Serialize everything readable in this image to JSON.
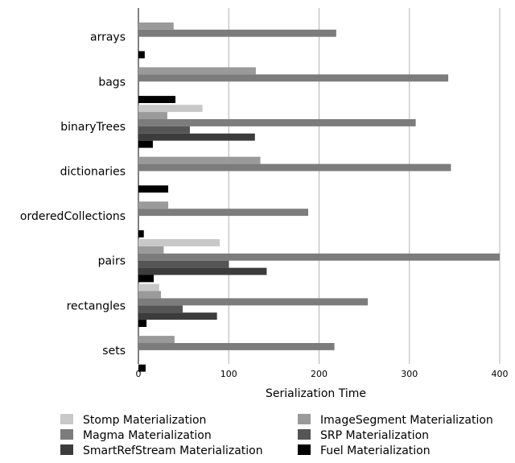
{
  "chart_data": {
    "type": "bar",
    "orientation": "horizontal",
    "xlabel": "Serialization Time",
    "xlim": [
      0,
      400
    ],
    "xticks": [
      0,
      100,
      200,
      300,
      400
    ],
    "grid": "vertical",
    "legend_position": "bottom",
    "categories": [
      "arrays",
      "bags",
      "binaryTrees",
      "dictionaries",
      "orderedCollections",
      "pairs",
      "rectangles",
      "sets"
    ],
    "series": [
      {
        "name": "Stomp Materialization",
        "color": "#c8c8c8",
        "values": [
          0,
          0,
          71,
          0,
          0,
          90,
          23,
          0
        ]
      },
      {
        "name": "ImageSegment Materialization",
        "color": "#9a9a9a",
        "values": [
          39,
          130,
          32,
          135,
          33,
          28,
          25,
          40
        ]
      },
      {
        "name": "Magma Materialization",
        "color": "#7c7c7c",
        "values": [
          219,
          343,
          307,
          346,
          188,
          400,
          254,
          217
        ]
      },
      {
        "name": "SRP Materialization",
        "color": "#555555",
        "values": [
          0,
          0,
          57,
          0,
          0,
          100,
          49,
          0
        ]
      },
      {
        "name": "SmartRefStream Materialization",
        "color": "#3c3c3c",
        "values": [
          0,
          0,
          129,
          0,
          0,
          142,
          87,
          0
        ]
      },
      {
        "name": "Fuel Materialization",
        "color": "#000000",
        "values": [
          7,
          41,
          16,
          33,
          6,
          17,
          9,
          8
        ]
      }
    ]
  }
}
